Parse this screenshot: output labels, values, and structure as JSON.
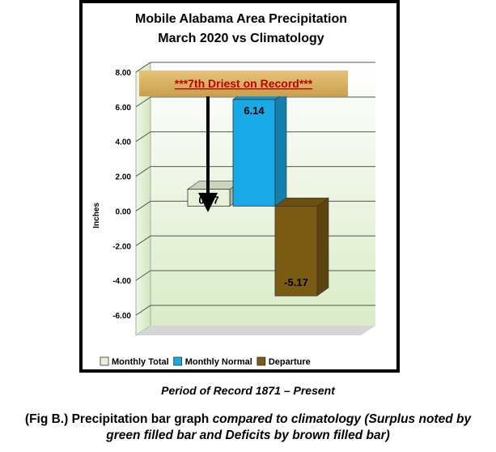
{
  "chart_data": {
    "type": "bar",
    "title_line1": "Mobile Alabama Area Precipitation",
    "title_line2": "March 2020 vs Climatology",
    "ylabel": "Inches",
    "ylim": [
      -6,
      8
    ],
    "yticks": [
      "8.00",
      "6.00",
      "4.00",
      "2.00",
      "0.00",
      "-2.00",
      "-4.00",
      "-6.00"
    ],
    "ytick_values": [
      8,
      6,
      4,
      2,
      0,
      -2,
      -4,
      -6
    ],
    "grid": true,
    "legend_position": "bottom",
    "annotation": "***7th Driest on Record***",
    "series": [
      {
        "name": "Monthly Total",
        "value": 0.97,
        "label": "0.97",
        "color": "#e7f2d8"
      },
      {
        "name": "Monthly Normal",
        "value": 6.14,
        "label": "6.14",
        "color": "#18a9e6"
      },
      {
        "name": "Departure",
        "value": -5.17,
        "label": "-5.17",
        "color": "#7b5a12"
      }
    ]
  },
  "period_note": "Period of Record 1871 – Present",
  "caption": {
    "prefix": "(Fig B.) Precipitation bar graph ",
    "italic_line1": "compared to climatology (Surplus noted by",
    "italic_line2": "green filled bar and Deficits by brown filled bar)"
  }
}
